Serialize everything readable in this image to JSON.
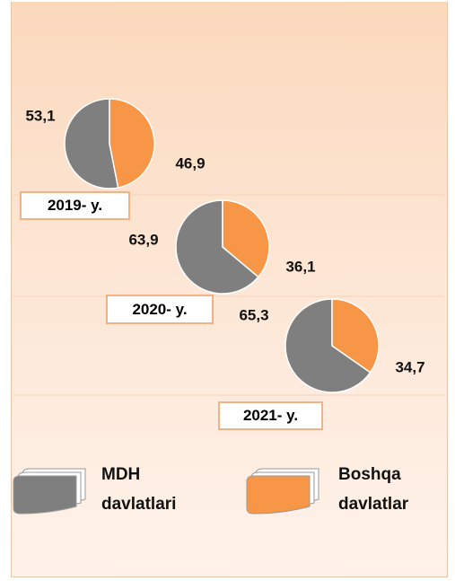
{
  "chart_data": [
    {
      "type": "pie",
      "title": "2019- y.",
      "categories": [
        "MDH davlatlari",
        "Boshqa davlatlar"
      ],
      "values": [
        53.1,
        46.9
      ],
      "value_labels": [
        "53,1",
        "46,9"
      ],
      "colors": [
        "#7f7f7f",
        "#f79646"
      ]
    },
    {
      "type": "pie",
      "title": "2020- y.",
      "categories": [
        "MDH davlatlari",
        "Boshqa davlatlar"
      ],
      "values": [
        63.9,
        36.1
      ],
      "value_labels": [
        "63,9",
        "36,1"
      ],
      "colors": [
        "#7f7f7f",
        "#f79646"
      ]
    },
    {
      "type": "pie",
      "title": "2021- y.",
      "categories": [
        "MDH davlatlari",
        "Boshqa davlatlar"
      ],
      "values": [
        65.3,
        34.7
      ],
      "value_labels": [
        "65,3",
        "34,7"
      ],
      "colors": [
        "#7f7f7f",
        "#f79646"
      ]
    }
  ],
  "legend": [
    {
      "name": "MDH davlatlari",
      "color": "#7f7f7f"
    },
    {
      "name": "Boshqa davlatlar",
      "color": "#f79646"
    }
  ]
}
